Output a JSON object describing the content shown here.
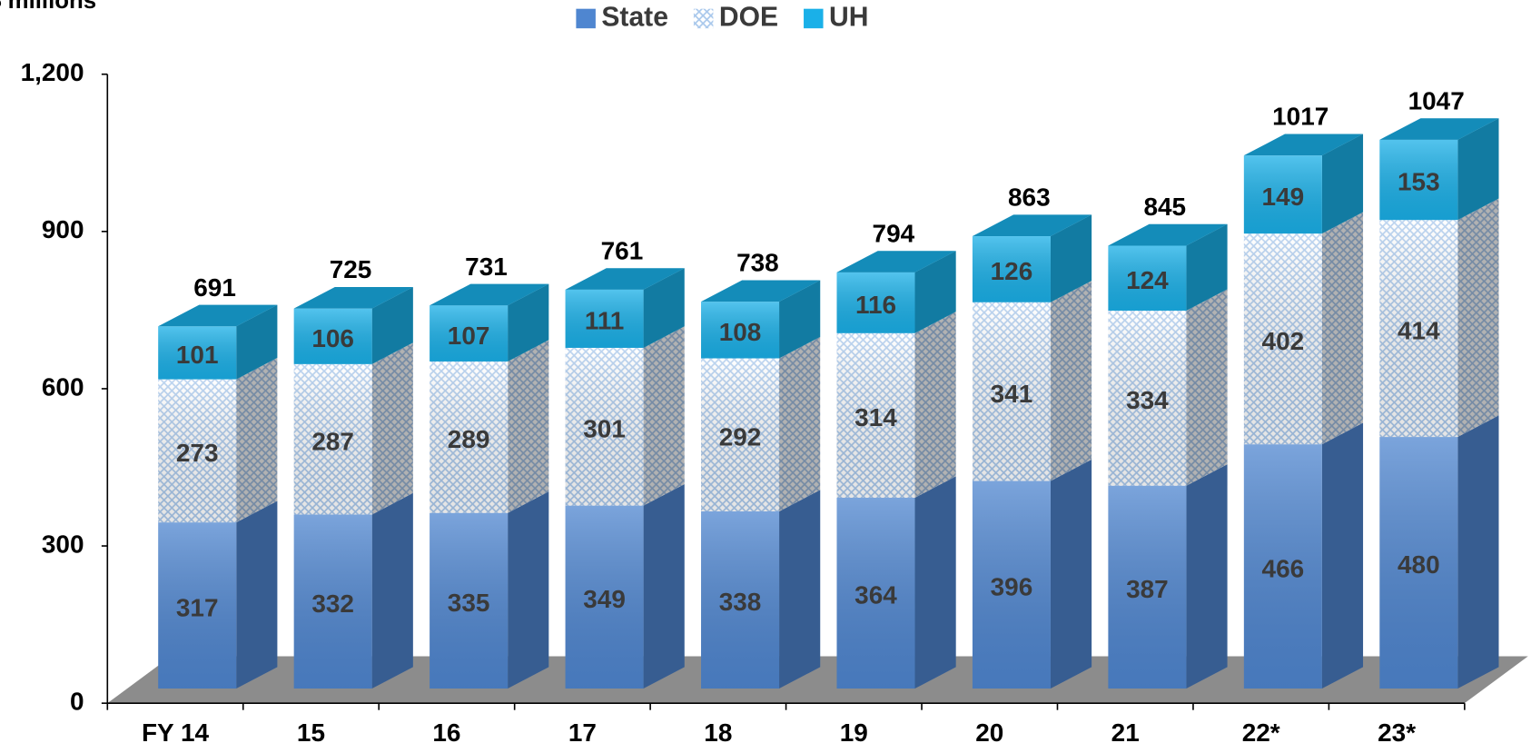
{
  "chart_data": {
    "type": "bar3d_stacked",
    "y_axis_label": "$ millions",
    "categories": [
      "FY 14",
      "15",
      "16",
      "17",
      "18",
      "19",
      "20",
      "21",
      "22*",
      "23*"
    ],
    "series": [
      {
        "name": "State",
        "color": "#4f86d0",
        "values": [
          317,
          332,
          335,
          349,
          338,
          364,
          396,
          387,
          466,
          480
        ]
      },
      {
        "name": "DOE",
        "color": "#a9c8ec",
        "pattern": "crosshatch",
        "values": [
          273,
          287,
          289,
          301,
          292,
          314,
          341,
          334,
          402,
          414
        ]
      },
      {
        "name": "UH",
        "color": "#1ab0e8",
        "values": [
          101,
          106,
          107,
          111,
          108,
          116,
          126,
          124,
          149,
          153
        ]
      }
    ],
    "totals": [
      691,
      725,
      731,
      761,
      738,
      794,
      863,
      845,
      1017,
      1047
    ],
    "ylim": [
      0,
      1200
    ],
    "yticks": [
      0,
      300,
      600,
      900,
      {
        "value": 1200,
        "label": "1,200"
      }
    ],
    "legend": "top"
  }
}
